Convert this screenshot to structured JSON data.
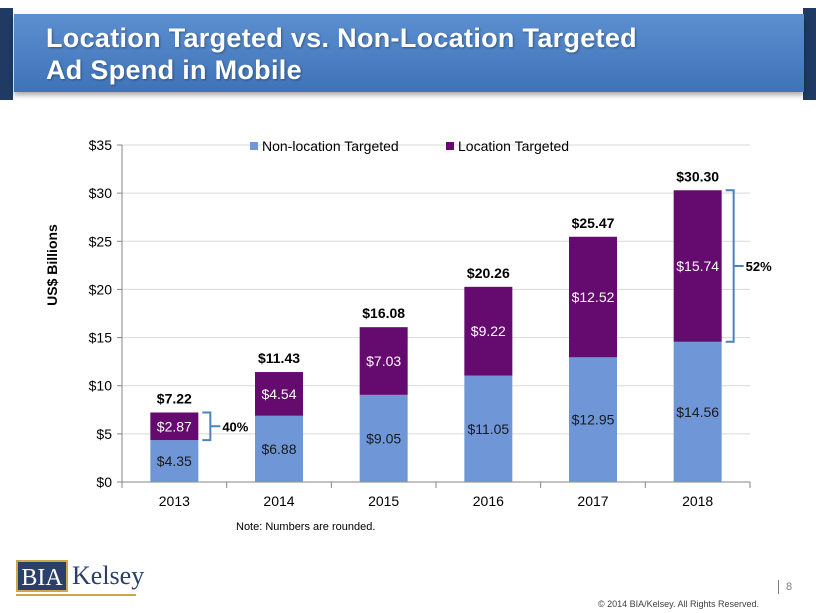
{
  "header": {
    "title_line1": "Location Targeted vs. Non-Location Targeted",
    "title_line2": "Ad Spend in Mobile"
  },
  "chart_data": {
    "type": "bar",
    "stacked": true,
    "categories": [
      "2013",
      "2014",
      "2015",
      "2016",
      "2017",
      "2018"
    ],
    "series": [
      {
        "name": "Non-location Targeted",
        "color": "#6f97d8",
        "values": [
          4.35,
          6.88,
          9.05,
          11.05,
          12.95,
          14.56
        ],
        "labels": [
          "$4.35",
          "$6.88",
          "$9.05",
          "$11.05",
          "$12.95",
          "$14.56"
        ]
      },
      {
        "name": "Location Targeted",
        "color": "#650a6e",
        "values": [
          2.87,
          4.54,
          7.03,
          9.22,
          12.52,
          15.74
        ],
        "labels": [
          "$2.87",
          "$4.54",
          "$7.03",
          "$9.22",
          "$12.52",
          "$15.74"
        ]
      }
    ],
    "totals": [
      "$7.22",
      "$11.43",
      "$16.08",
      "$20.26",
      "$25.47",
      "$30.30"
    ],
    "ylabel": "US$ Billions",
    "ylim": [
      0,
      35
    ],
    "yticks": [
      0,
      5,
      10,
      15,
      20,
      25,
      30,
      35
    ],
    "ytick_labels": [
      "$0",
      "$5",
      "$10",
      "$15",
      "$20",
      "$25",
      "$30",
      "$35"
    ],
    "grid": true,
    "legend": "top-center",
    "annotations": [
      {
        "category": "2013",
        "text": "40%"
      },
      {
        "category": "2018",
        "text": "52%"
      }
    ]
  },
  "footer": {
    "note": "Note: Numbers are rounded.",
    "logo_bia": "BIA",
    "logo_kelsey": "Kelsey",
    "page_number": "8",
    "copyright": "© 2014 BIA/Kelsey.  All Rights Reserved."
  }
}
